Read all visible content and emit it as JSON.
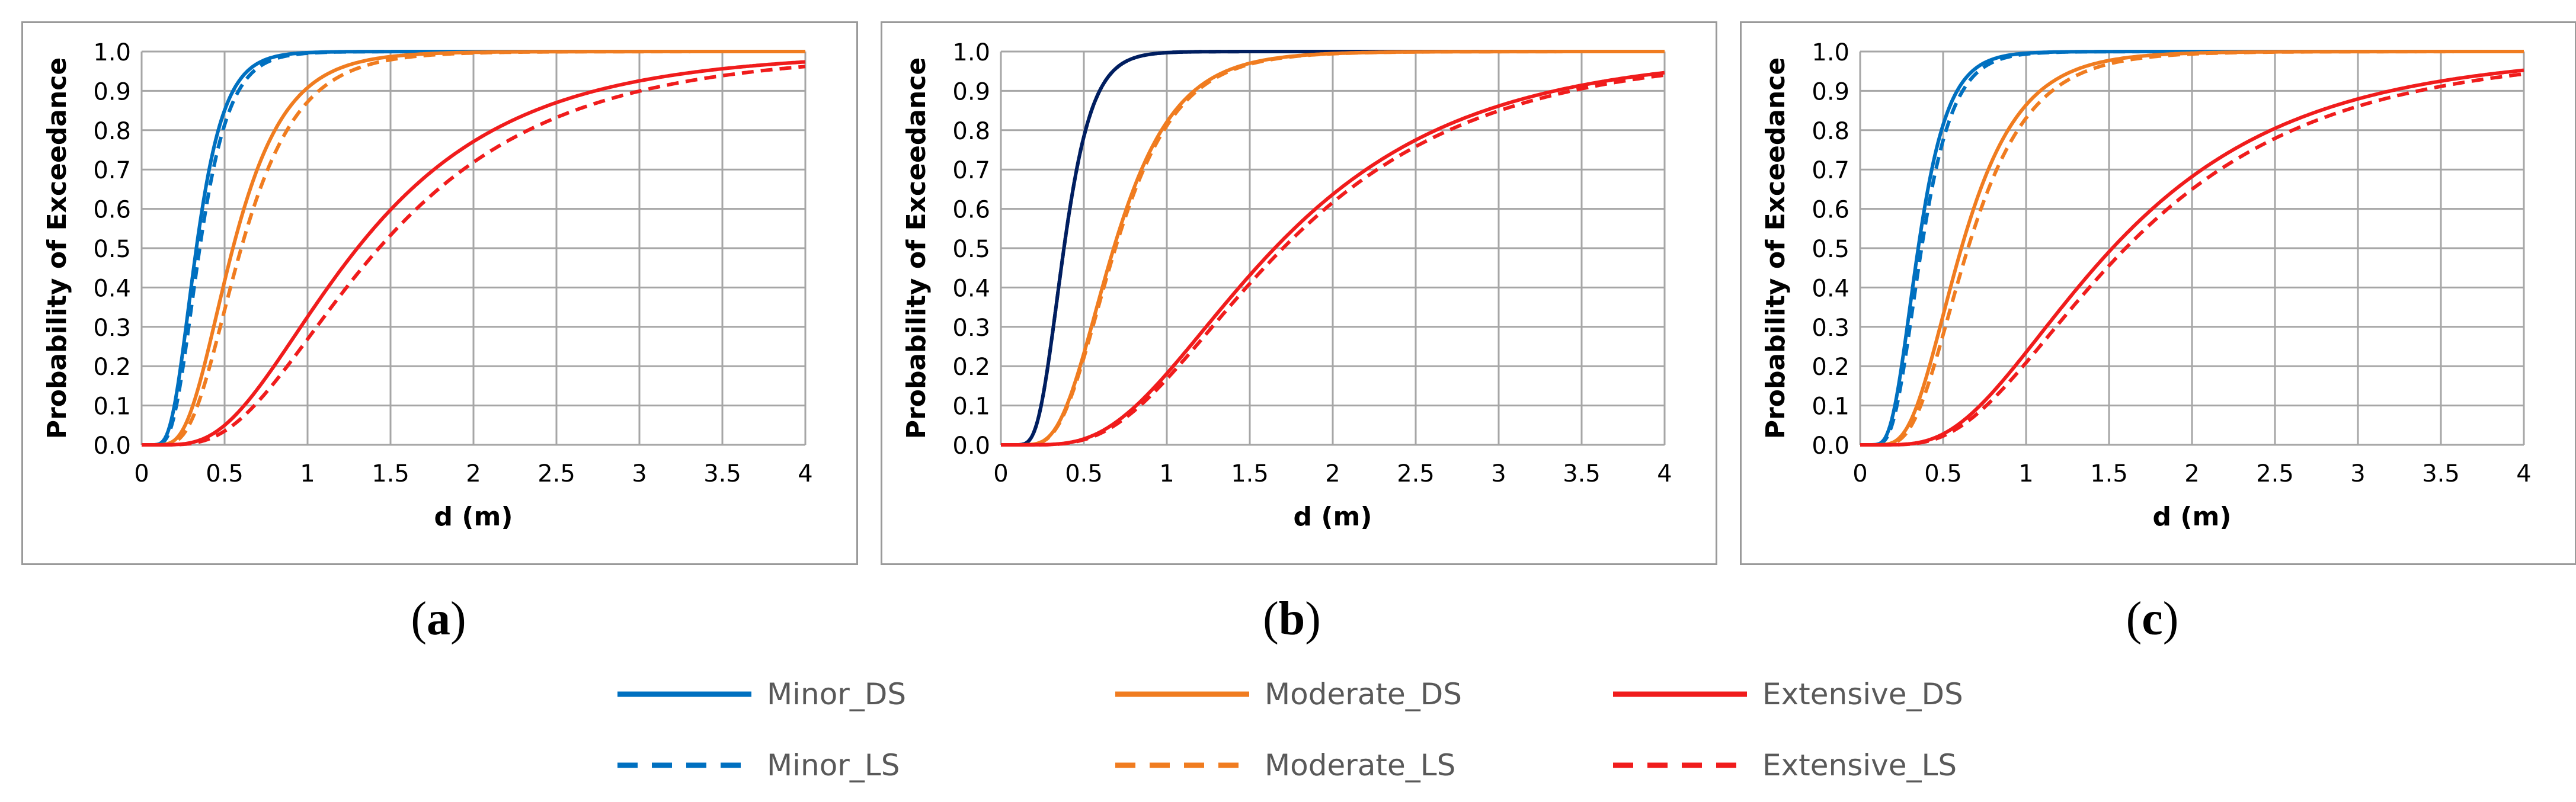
{
  "chart_data": [
    {
      "panel": "a",
      "type": "line",
      "xlabel": "d (m)",
      "ylabel": "Probability of Exceedance",
      "xlim": [
        0,
        4
      ],
      "ylim": [
        0,
        1
      ],
      "xticks": [
        "0",
        "0.5",
        "1",
        "1.5",
        "2",
        "2.5",
        "3",
        "3.5",
        "4"
      ],
      "yticks": [
        "0.0",
        "0.1",
        "0.2",
        "0.3",
        "0.4",
        "0.5",
        "0.6",
        "0.7",
        "0.8",
        "0.9",
        "1.0"
      ],
      "grid": true,
      "series": [
        {
          "name": "Minor_DS",
          "median": 0.33,
          "beta": 0.4
        },
        {
          "name": "Minor_LS",
          "median": 0.35,
          "beta": 0.4
        },
        {
          "name": "Moderate_DS",
          "median": 0.55,
          "beta": 0.45
        },
        {
          "name": "Moderate_LS",
          "median": 0.6,
          "beta": 0.45
        },
        {
          "name": "Extensive_DS",
          "median": 1.3,
          "beta": 0.58
        },
        {
          "name": "Extensive_LS",
          "median": 1.43,
          "beta": 0.58
        }
      ]
    },
    {
      "panel": "b",
      "type": "line",
      "xlabel": "d (m)",
      "ylabel": "Probability of Exceedance",
      "xlim": [
        0,
        4
      ],
      "ylim": [
        0,
        1
      ],
      "xticks": [
        "0",
        "0.5",
        "1",
        "1.5",
        "2",
        "2.5",
        "3",
        "3.5",
        "4"
      ],
      "yticks": [
        "0.0",
        "0.1",
        "0.2",
        "0.3",
        "0.4",
        "0.5",
        "0.6",
        "0.7",
        "0.8",
        "0.9",
        "1.0"
      ],
      "grid": true,
      "series": [
        {
          "name": "Minor_DS",
          "median": 0.38,
          "beta": 0.35
        },
        {
          "name": "Minor_LS",
          "median": 0.38,
          "beta": 0.35
        },
        {
          "name": "Moderate_DS",
          "median": 0.68,
          "beta": 0.42
        },
        {
          "name": "Moderate_LS",
          "median": 0.69,
          "beta": 0.42
        },
        {
          "name": "Extensive_DS",
          "median": 1.65,
          "beta": 0.55
        },
        {
          "name": "Extensive_LS",
          "median": 1.7,
          "beta": 0.55
        }
      ]
    },
    {
      "panel": "c",
      "type": "line",
      "xlabel": "d (m)",
      "ylabel": "Probability of Exceedance",
      "xlim": [
        0,
        4
      ],
      "ylim": [
        0,
        1
      ],
      "xticks": [
        "0",
        "0.5",
        "1",
        "1.5",
        "2",
        "2.5",
        "3",
        "3.5",
        "4"
      ],
      "yticks": [
        "0.0",
        "0.1",
        "0.2",
        "0.3",
        "0.4",
        "0.5",
        "0.6",
        "0.7",
        "0.8",
        "0.9",
        "1.0"
      ],
      "grid": true,
      "series": [
        {
          "name": "Minor_DS",
          "median": 0.35,
          "beta": 0.4
        },
        {
          "name": "Minor_LS",
          "median": 0.37,
          "beta": 0.4
        },
        {
          "name": "Moderate_DS",
          "median": 0.61,
          "beta": 0.45
        },
        {
          "name": "Moderate_LS",
          "median": 0.65,
          "beta": 0.45
        },
        {
          "name": "Extensive_DS",
          "median": 1.52,
          "beta": 0.58
        },
        {
          "name": "Extensive_LS",
          "median": 1.6,
          "beta": 0.58
        }
      ]
    }
  ],
  "captions": [
    "(a)",
    "(b)",
    "(c)"
  ],
  "caption_letters": [
    "a",
    "b",
    "c"
  ],
  "legend": [
    {
      "label": "Minor_DS",
      "style": "solid",
      "color": "#0070C0"
    },
    {
      "label": "Moderate_DS",
      "style": "solid",
      "color": "#F07C20"
    },
    {
      "label": "Extensive_DS",
      "style": "solid",
      "color": "#F01C1C"
    },
    {
      "label": "Minor_LS",
      "style": "dashed",
      "color": "#0070C0"
    },
    {
      "label": "Moderate_LS",
      "style": "dashed",
      "color": "#F07C20"
    },
    {
      "label": "Extensive_LS",
      "style": "dashed",
      "color": "#F01C1C"
    }
  ],
  "colors": {
    "Minor_a": "#0070C0",
    "Minor_b": "#001E60",
    "Moderate": "#F07C20",
    "Extensive": "#F01C1C",
    "grid": "#A6A6A6"
  }
}
